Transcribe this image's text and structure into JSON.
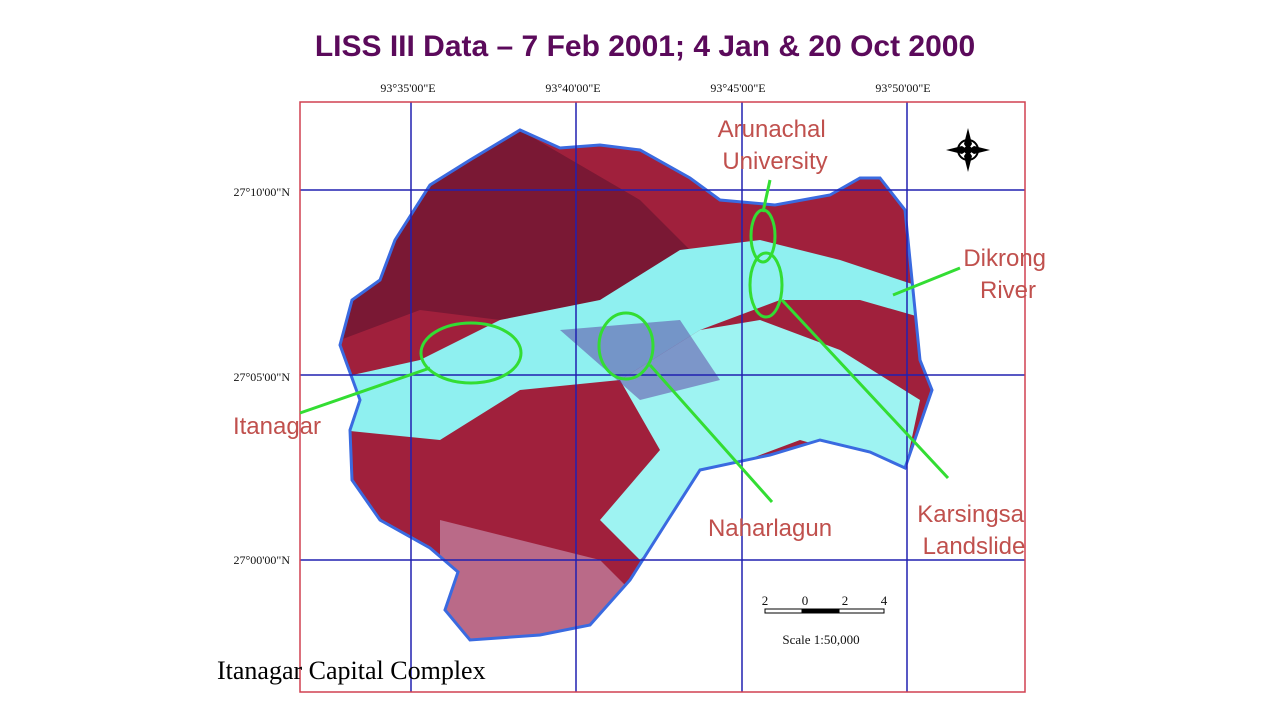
{
  "header": {
    "title": "LISS III Data – 7 Feb 2001; 4 Jan & 20 Oct 2000"
  },
  "map": {
    "longitudes": [
      "93°35'00\"E",
      "93°40'00\"E",
      "93°45'00\"E",
      "93°50'00\"E"
    ],
    "latitudes": [
      "27°10'00\"N",
      "27°05'00\"N",
      "27°00'00\"N"
    ]
  },
  "annotations": [
    {
      "lines": [
        "Arunachal",
        "University"
      ]
    },
    {
      "lines": [
        "Dikrong",
        "River"
      ]
    },
    {
      "lines": [
        "Itanagar"
      ]
    },
    {
      "lines": [
        "Naharlagun"
      ]
    },
    {
      "lines": [
        "Karsingsa",
        "Landslide"
      ]
    }
  ],
  "scale": {
    "labels": [
      "2",
      "0",
      "2",
      "4"
    ],
    "caption": "Scale 1:50,000"
  },
  "caption": "Itanagar Capital Complex"
}
